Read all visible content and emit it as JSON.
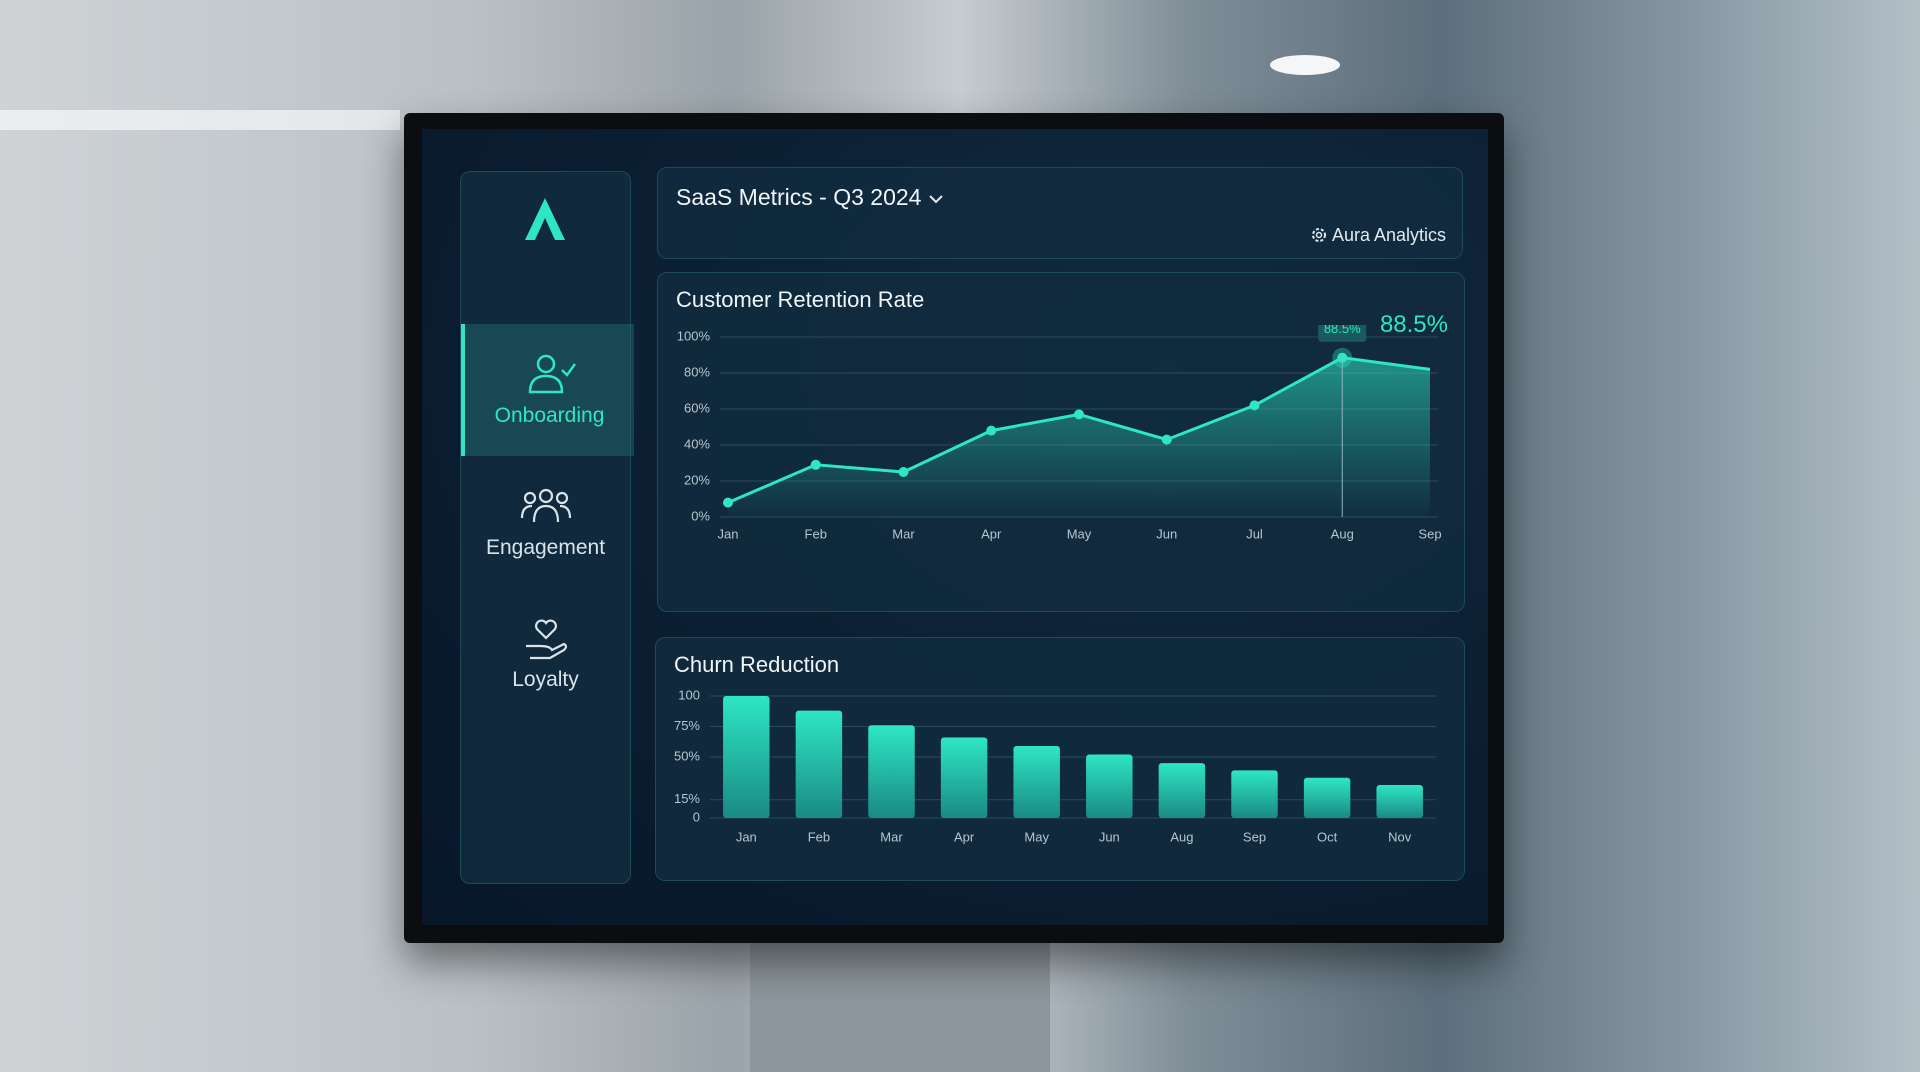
{
  "brand": "Aura Analytics",
  "header": {
    "title": "SaaS Metrics - Q3 2024"
  },
  "nav": [
    {
      "label": "Onboarding",
      "active": true
    },
    {
      "label": "Engagement",
      "active": false
    },
    {
      "label": "Loyalty",
      "active": false
    }
  ],
  "chart_data": [
    {
      "type": "line",
      "title": "Customer Retention Rate",
      "headline": "88.5%",
      "categories": [
        "Jan",
        "Feb",
        "Mar",
        "Apr",
        "May",
        "Jun",
        "Jul",
        "Aug",
        "Sep"
      ],
      "values": [
        8,
        29,
        25,
        48,
        57,
        43,
        62,
        88.5,
        82
      ],
      "value_labels": [
        null,
        null,
        null,
        null,
        null,
        null,
        null,
        "88.5%",
        null
      ],
      "color": "#2ee6c4",
      "area": true,
      "grid": true,
      "ylim": [
        0,
        100
      ],
      "yticks": [
        {
          "value": 0,
          "label": "0%"
        },
        {
          "value": 20,
          "label": "20%"
        },
        {
          "value": 40,
          "label": "40%"
        },
        {
          "value": 60,
          "label": "60%"
        },
        {
          "value": 80,
          "label": "80%"
        },
        {
          "value": 100,
          "label": "100%"
        }
      ]
    },
    {
      "type": "bar",
      "title": "Churn Reduction",
      "categories": [
        "Jan",
        "Feb",
        "Mar",
        "Apr",
        "May",
        "Jun",
        "Aug",
        "Sep",
        "Oct",
        "Nov"
      ],
      "values": [
        100,
        88,
        76,
        66,
        59,
        52,
        45,
        39,
        33,
        27
      ],
      "color": "#2ee6c4",
      "grid": true,
      "ylim": [
        0,
        100
      ],
      "yticks": [
        0,
        {
          "value": 15,
          "label": "15%"
        },
        {
          "value": 50,
          "label": "50%"
        },
        {
          "value": 75,
          "label": "75%"
        },
        100
      ]
    }
  ]
}
